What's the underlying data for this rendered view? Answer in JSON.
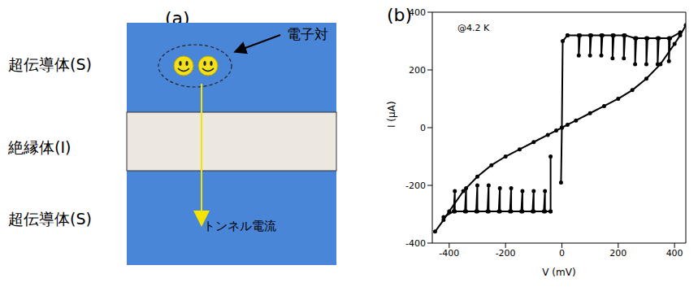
{
  "panel_a": {
    "label": "(a)",
    "layers": [
      {
        "label": "超伝導体(S)"
      },
      {
        "label": "絶縁体(I)"
      },
      {
        "label": "超伝導体(S)"
      }
    ],
    "pair_label": "電子対",
    "current_label": "トンネル電流"
  },
  "chart_data": {
    "type": "line",
    "title": "(b)",
    "annotations": [
      "@4.2 K"
    ],
    "x_label": "V (mV)",
    "y_label": "I (μA)",
    "xlim": [
      -460,
      440
    ],
    "xticks": [
      -400,
      -200,
      0,
      200,
      400
    ],
    "ylim": [
      -400,
      400
    ],
    "yticks": [
      -400,
      -200,
      0,
      200,
      400
    ],
    "grid": false,
    "color": "#000000",
    "marker": "circle",
    "series": [
      {
        "x": [
          -450,
          -420,
          -400,
          -350,
          -300,
          -250,
          -200,
          -150,
          -100,
          -50,
          -20,
          0,
          20,
          50,
          100,
          150,
          200,
          250,
          300,
          350,
          400,
          420,
          440
        ],
        "values": [
          -360,
          -320,
          -290,
          -220,
          -170,
          -130,
          -100,
          -75,
          -50,
          -25,
          -10,
          0,
          10,
          25,
          50,
          75,
          100,
          130,
          170,
          220,
          290,
          320,
          355
        ]
      },
      {
        "x": [
          -3,
          0,
          3,
          20
        ],
        "values": [
          -190,
          0,
          300,
          320
        ]
      },
      {
        "x": [
          -40,
          -40
        ],
        "values": [
          -100,
          -290
        ]
      },
      {
        "x": [
          20,
          60,
          60,
          64,
          100,
          100,
          104,
          140,
          140,
          144,
          180,
          180,
          184,
          220,
          220,
          224,
          260,
          260,
          264,
          300,
          300,
          304,
          340,
          340,
          344,
          380,
          380,
          384,
          420
        ],
        "values": [
          320,
          320,
          250,
          320,
          320,
          250,
          320,
          320,
          250,
          320,
          320,
          240,
          320,
          320,
          240,
          320,
          310,
          220,
          310,
          310,
          220,
          310,
          310,
          220,
          310,
          310,
          230,
          310,
          330
        ]
      },
      {
        "x": [
          -40,
          -60,
          -60,
          -64,
          -100,
          -100,
          -104,
          -140,
          -140,
          -144,
          -180,
          -180,
          -184,
          -220,
          -220,
          -224,
          -260,
          -260,
          -264,
          -300,
          -300,
          -304,
          -340,
          -340,
          -344,
          -380,
          -380,
          -384,
          -420
        ],
        "values": [
          -290,
          -290,
          -220,
          -290,
          -290,
          -220,
          -290,
          -290,
          -220,
          -290,
          -290,
          -210,
          -290,
          -290,
          -210,
          -290,
          -290,
          -200,
          -290,
          -290,
          -200,
          -290,
          -290,
          -210,
          -290,
          -290,
          -220,
          -290,
          -310
        ]
      }
    ]
  }
}
